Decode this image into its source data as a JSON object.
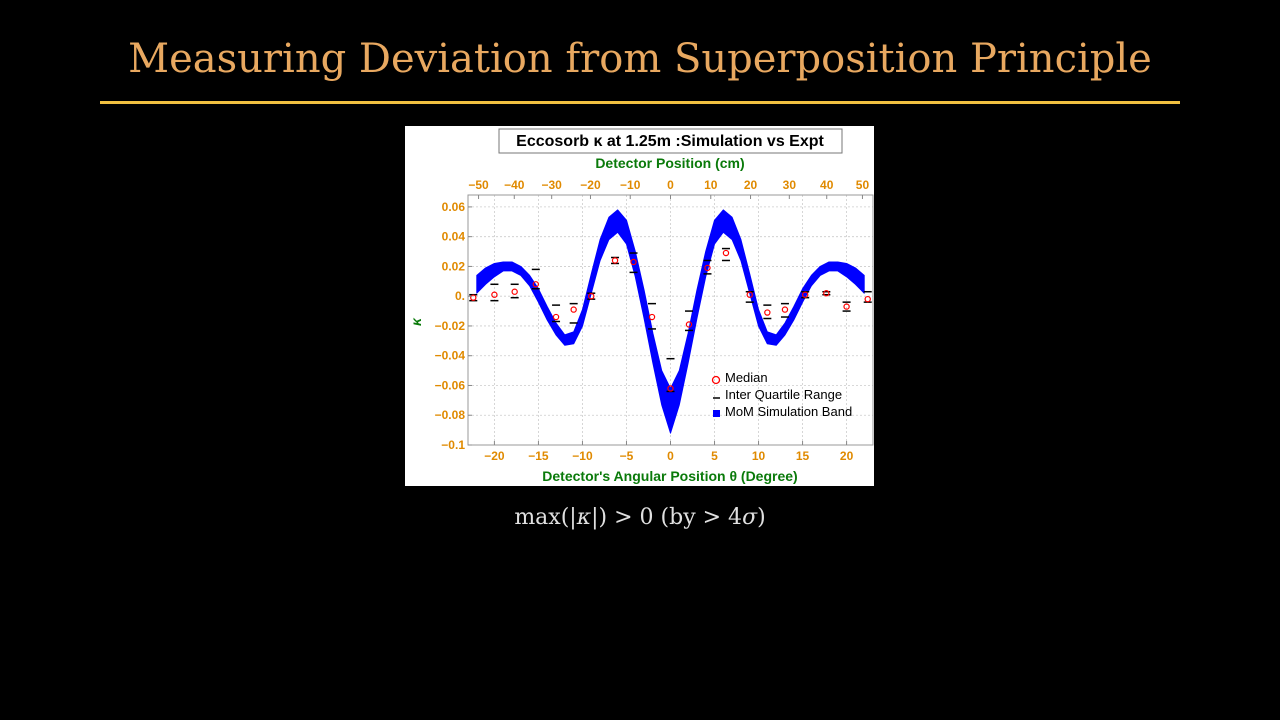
{
  "slide": {
    "title": "Measuring Deviation from Superposition Principle",
    "caption_prefix": "max(|",
    "caption_kappa": "κ",
    "caption_suffix": "|) > 0 (by > 4",
    "caption_sigma": "σ",
    "caption_close": ")"
  },
  "colors": {
    "background": "#000000",
    "title": "#e8a860",
    "rule": "#f0c040",
    "band": "#0000ff",
    "median": "#ff0000",
    "iqr": "#000000",
    "axis_label": "#0a7a0a",
    "tick_label": "#e08a00"
  },
  "chart_data": {
    "type": "scatter",
    "title": "Eccosorb κ at 1.25m :Simulation vs Expt",
    "xlabel": "Detector's Angular Position θ (Degree)",
    "x2label": "Detector Position (cm)",
    "ylabel": "κ",
    "xlim": [
      -23,
      23
    ],
    "ylim": [
      -0.1,
      0.068
    ],
    "x_ticks": [
      -20,
      -15,
      -10,
      -5,
      0,
      5,
      10,
      15,
      20
    ],
    "x2_ticks": [
      -50,
      -40,
      -30,
      -20,
      -10,
      0,
      10,
      20,
      30,
      40,
      50
    ],
    "x2_tick_labels": [
      "−50",
      "−40",
      "−30",
      "−20",
      "−10",
      "0",
      "10",
      "20",
      "30",
      "40",
      "50"
    ],
    "y_ticks": [
      0.06,
      0.04,
      0.02,
      0,
      -0.02,
      -0.04,
      -0.06,
      -0.08,
      -0.1
    ],
    "y_tick_labels": [
      "0.06",
      "0.04",
      "0.02",
      "0.",
      "−0.02",
      "−0.04",
      "−0.06",
      "−0.08",
      "−0.1"
    ],
    "x_tick_labels": [
      "−20",
      "−15",
      "−10",
      "−5",
      "0",
      "5",
      "10",
      "15",
      "20"
    ],
    "grid": true,
    "legend_position": "bottom-right",
    "legend": [
      "Median",
      "Inter Quartile Range",
      "MoM Simulation Band"
    ],
    "band": {
      "name": "MoM Simulation Band",
      "x": [
        -22,
        -21,
        -20,
        -19,
        -18,
        -17,
        -16,
        -15,
        -14,
        -13,
        -12,
        -11,
        -10,
        -9,
        -8,
        -7,
        -6,
        -5,
        -4,
        -3,
        -2,
        -1,
        0,
        1,
        2,
        3,
        4,
        5,
        6,
        7,
        8,
        9,
        10,
        11,
        12,
        13,
        14,
        15,
        16,
        17,
        18,
        19,
        20,
        21,
        22
      ],
      "upper": [
        0.014,
        0.019,
        0.022,
        0.023,
        0.023,
        0.02,
        0.014,
        0.005,
        -0.007,
        -0.018,
        -0.026,
        -0.024,
        -0.009,
        0.015,
        0.038,
        0.053,
        0.058,
        0.051,
        0.03,
        0.004,
        -0.025,
        -0.05,
        -0.062,
        -0.05,
        -0.025,
        0.004,
        0.03,
        0.051,
        0.058,
        0.053,
        0.038,
        0.015,
        -0.009,
        -0.024,
        -0.026,
        -0.018,
        -0.007,
        0.005,
        0.014,
        0.02,
        0.023,
        0.023,
        0.022,
        0.019,
        0.014
      ],
      "lower": [
        0.002,
        0.008,
        0.013,
        0.017,
        0.017,
        0.014,
        0.007,
        -0.004,
        -0.016,
        -0.026,
        -0.033,
        -0.032,
        -0.02,
        0.002,
        0.024,
        0.038,
        0.043,
        0.035,
        0.013,
        -0.015,
        -0.045,
        -0.073,
        -0.092,
        -0.073,
        -0.045,
        -0.015,
        0.013,
        0.035,
        0.043,
        0.038,
        0.024,
        0.002,
        -0.02,
        -0.032,
        -0.033,
        -0.026,
        -0.016,
        -0.004,
        0.007,
        0.014,
        0.017,
        0.017,
        0.013,
        0.008,
        0.002
      ]
    },
    "median": {
      "name": "Median",
      "x": [
        -22.4,
        -20,
        -17.7,
        -15.3,
        -13,
        -11,
        -9,
        -6.3,
        -4.2,
        -2.1,
        0,
        2.1,
        4.2,
        6.3,
        9,
        11,
        13,
        15.3,
        17.7,
        20,
        22.4
      ],
      "y": [
        -0.001,
        0.001,
        0.003,
        0.008,
        -0.014,
        -0.009,
        0.0,
        0.024,
        0.023,
        -0.014,
        -0.062,
        -0.019,
        0.019,
        0.029,
        0.001,
        -0.011,
        -0.009,
        0.001,
        0.002,
        -0.007,
        -0.002
      ]
    },
    "iqr": {
      "name": "Inter Quartile Range",
      "x": [
        -22.4,
        -20,
        -17.7,
        -15.3,
        -13,
        -11,
        -9,
        -6.3,
        -4.2,
        -2.1,
        0,
        2.1,
        4.2,
        6.3,
        9,
        11,
        13,
        15.3,
        17.7,
        20,
        22.4
      ],
      "upper": [
        0.001,
        0.008,
        0.008,
        0.018,
        -0.006,
        -0.005,
        0.002,
        0.026,
        0.029,
        -0.005,
        -0.042,
        -0.01,
        0.024,
        0.032,
        0.003,
        -0.006,
        -0.005,
        0.003,
        0.003,
        -0.004,
        0.003
      ],
      "lower": [
        -0.003,
        -0.003,
        -0.001,
        0.005,
        -0.017,
        -0.018,
        -0.002,
        0.022,
        0.016,
        -0.022,
        -0.064,
        -0.023,
        0.015,
        0.024,
        -0.004,
        -0.015,
        -0.014,
        -0.001,
        0.001,
        -0.01,
        -0.004
      ]
    }
  }
}
